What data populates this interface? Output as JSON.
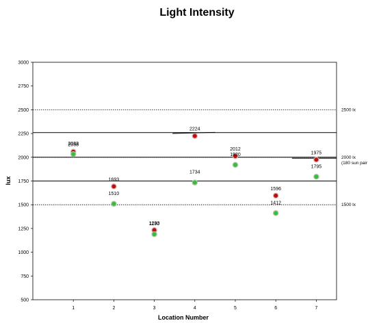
{
  "chart_data": {
    "type": "scatter",
    "title": "Light Intensity",
    "xlabel": "Location Number",
    "ylabel": "lux",
    "xlim": [
      0,
      7.5
    ],
    "ylim": [
      500,
      3000
    ],
    "x_ticks": [
      1,
      2,
      3,
      4,
      5,
      6,
      7
    ],
    "y_ticks": [
      500,
      750,
      1000,
      1250,
      1500,
      1750,
      2000,
      2250,
      2500,
      2750,
      3000
    ],
    "grid": false,
    "series": [
      {
        "color": "#dd0000",
        "x": [
          1,
          2,
          3,
          4,
          5,
          6,
          7
        ],
        "y": [
          2058,
          1693,
          1233,
          2224,
          2012,
          1596,
          1975
        ],
        "labels": [
          "2058",
          "1693",
          "1233",
          "2224",
          "2012",
          "1596",
          "1975"
        ]
      },
      {
        "color": "#22cc22",
        "x": [
          1,
          2,
          3,
          4,
          5,
          6,
          7
        ],
        "y": [
          2033,
          1510,
          1190,
          1734,
          1920,
          1412,
          1795
        ],
        "labels": [
          "2033",
          "1510",
          "1190",
          "1734",
          "1920",
          "1412",
          "1795"
        ]
      }
    ],
    "reference_lines": [
      {
        "y": 2500,
        "style": "dotted",
        "label": "2500 lx"
      },
      {
        "y": 2000,
        "style": "dotted",
        "label": "2000 lx",
        "sublabel": "(180 sun pair"
      },
      {
        "y": 1500,
        "style": "dotted",
        "label": "1500 lx"
      }
    ],
    "solid_lines": [
      {
        "y": 2260
      },
      {
        "y": 2250,
        "x_from": 3.45,
        "x_to": 4.5,
        "y_end": 2262
      },
      {
        "y": 2000
      },
      {
        "y": 1990,
        "x_from": 6.4,
        "x_to": 7.5
      },
      {
        "y": 1750
      }
    ]
  }
}
